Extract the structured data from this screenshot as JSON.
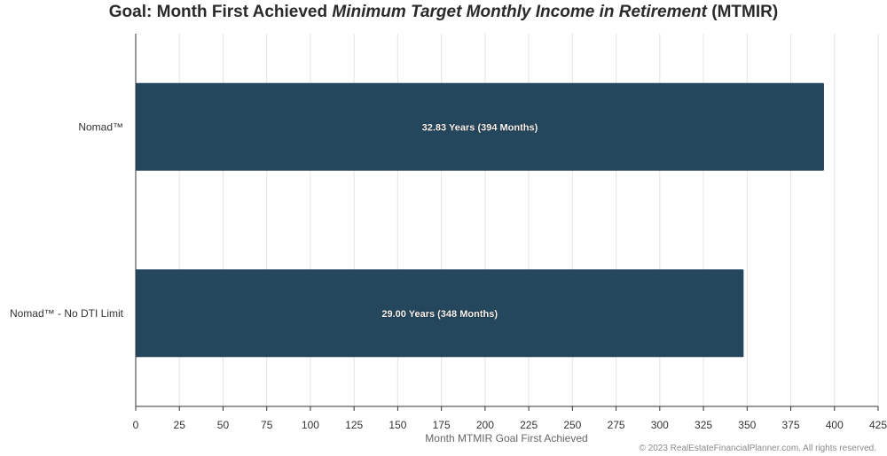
{
  "title": {
    "prefix": "Goal: Month First Achieved ",
    "italic": "Minimum Target Monthly Income in Retirement",
    "suffix": " (MTMIR)"
  },
  "chart_data": {
    "type": "bar",
    "orientation": "horizontal",
    "categories": [
      "Nomad™",
      "Nomad™ - No DTI Limit"
    ],
    "values": [
      394,
      348
    ],
    "data_labels": [
      "32.83 Years (394 Months)",
      "29.00 Years (348 Months)"
    ],
    "xlabel": "Month MTMIR Goal First Achieved",
    "ylabel": "",
    "xlim": [
      0,
      425
    ],
    "x_ticks": [
      0,
      25,
      50,
      75,
      100,
      125,
      150,
      175,
      200,
      225,
      250,
      275,
      300,
      325,
      350,
      375,
      400,
      425
    ],
    "grid": true,
    "legend": "none"
  },
  "colors": {
    "bar": "#24475e",
    "grid": "#e4e4e4",
    "axis": "#333333",
    "label_text": "#ffffff"
  },
  "footer": {
    "copyright": "© 2023 RealEstateFinancialPlanner.com. All rights reserved."
  }
}
